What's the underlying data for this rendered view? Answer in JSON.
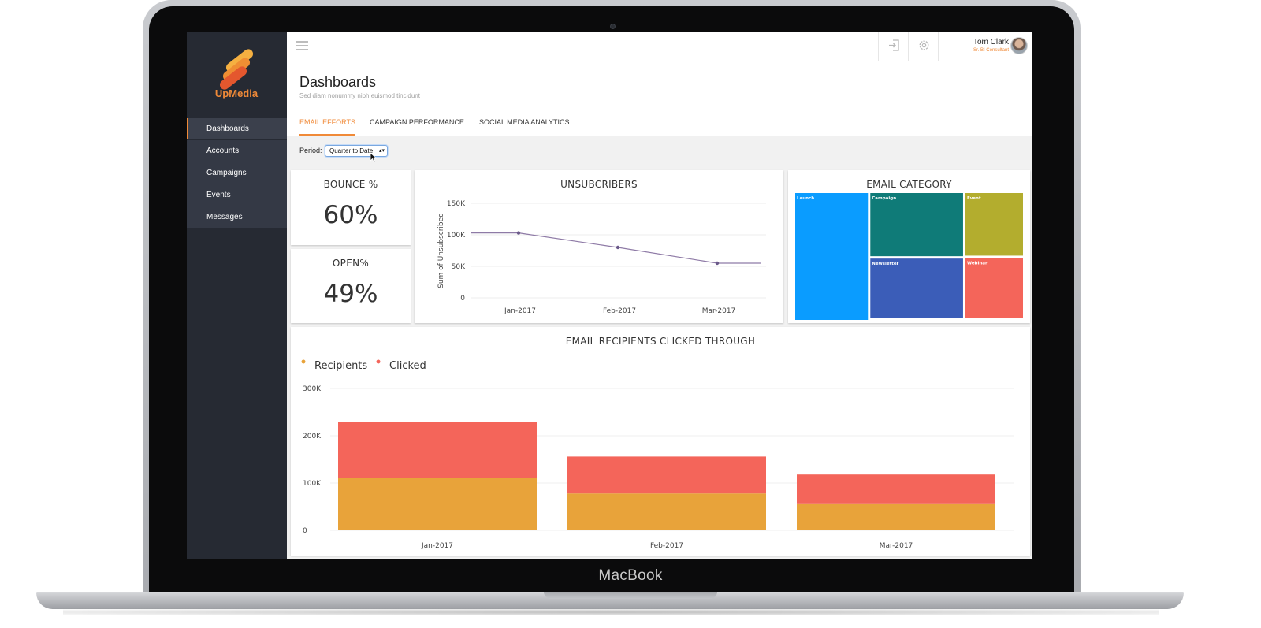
{
  "device": {
    "label": "MacBook"
  },
  "sidebar": {
    "logo_text": "UpMedia",
    "items": [
      {
        "label": "Dashboards",
        "active": true
      },
      {
        "label": "Accounts",
        "active": false
      },
      {
        "label": "Campaigns",
        "active": false
      },
      {
        "label": "Events",
        "active": false
      },
      {
        "label": "Messages",
        "active": false
      }
    ]
  },
  "topbar": {
    "menu_icon": "hamburger-icon",
    "login_icon": "sign-in-icon",
    "settings_icon": "gear-icon",
    "user": {
      "name": "Tom Clark",
      "role": "Sr. BI Consultant"
    }
  },
  "header": {
    "title": "Dashboards",
    "subtitle": "Sed diam nonummy nibh euismod tincidunt",
    "tabs": [
      {
        "label": "EMAIL EFFORTS",
        "active": true
      },
      {
        "label": "CAMPAIGN PERFORMANCE",
        "active": false
      },
      {
        "label": "SOCIAL MEDIA ANALYTICS",
        "active": false
      }
    ]
  },
  "filter": {
    "label": "Period:",
    "value": "Quarter to Date"
  },
  "kpis": [
    {
      "title": "BOUNCE %",
      "value": "60%"
    },
    {
      "title": "OPEN%",
      "value": "49%"
    }
  ],
  "colors": {
    "accent": "#f08a38",
    "recipients": "#e8a33a",
    "clicked": "#f4655a",
    "line": "#8e7aa6"
  },
  "chart_data": [
    {
      "type": "line",
      "title": "UNSUBCRIBERS",
      "ylabel": "Sum of Unsubscribed",
      "categories": [
        "Jan-2017",
        "Feb-2017",
        "Mar-2017"
      ],
      "values": [
        103000,
        80000,
        55000
      ],
      "yticks": [
        "0",
        "50K",
        "100K",
        "150K"
      ],
      "ylim": [
        0,
        150000
      ],
      "grid": true
    },
    {
      "type": "treemap",
      "title": "EMAIL CATEGORY",
      "items": [
        {
          "name": "Launch",
          "value": 30,
          "color": "#0a9cff"
        },
        {
          "name": "Campaign",
          "value": 20,
          "color": "#0f7b78"
        },
        {
          "name": "Newsletter",
          "value": 18,
          "color": "#3b5db8"
        },
        {
          "name": "Event",
          "value": 12,
          "color": "#b3ad2e"
        },
        {
          "name": "Webinar",
          "value": 11,
          "color": "#f4655a"
        }
      ]
    },
    {
      "type": "bar",
      "stacked": true,
      "title": "EMAIL RECIPIENTS CLICKED THROUGH",
      "categories": [
        "Jan-2017",
        "Feb-2017",
        "Mar-2017"
      ],
      "series": [
        {
          "name": "Recipients",
          "values": [
            110000,
            78000,
            57000
          ]
        },
        {
          "name": "Clicked",
          "values": [
            120000,
            78000,
            61000
          ]
        }
      ],
      "yticks": [
        "0",
        "100K",
        "200K",
        "300K"
      ],
      "ylim": [
        0,
        300000
      ],
      "legend": "top-left",
      "grid": true
    }
  ]
}
